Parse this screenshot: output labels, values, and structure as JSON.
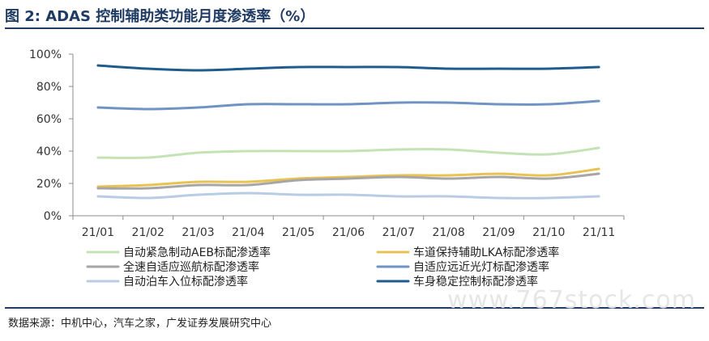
{
  "page": {
    "title": "图 2:  ADAS 控制辅助类功能月度渗透率（%）",
    "source": "数据来源：中机中心，汽车之家，广发证券发展研究中心",
    "watermark": "www.767stock.com"
  },
  "chart_data": {
    "type": "line",
    "title": "ADAS 控制辅助类功能月度渗透率（%）",
    "x": [
      "21/01",
      "21/02",
      "21/03",
      "21/04",
      "21/05",
      "21/06",
      "21/07",
      "21/08",
      "21/09",
      "21/10",
      "21/11"
    ],
    "ylim": [
      0,
      100
    ],
    "yticks": [
      0,
      20,
      40,
      60,
      80,
      100
    ],
    "ytick_format": "percent",
    "grid": false,
    "legend_position": "bottom",
    "series": [
      {
        "name": "自动紧急制动AEB标配渗透率",
        "color": "#c3e3b5",
        "values": [
          36,
          36,
          39,
          40,
          40,
          40,
          41,
          41,
          39,
          38,
          42
        ]
      },
      {
        "name": "车道保持辅助LKA标配渗透率",
        "color": "#e9c254",
        "values": [
          18,
          19,
          21,
          21,
          23,
          24,
          25,
          25,
          26,
          25,
          29
        ]
      },
      {
        "name": "全速自适应巡航标配渗透率",
        "color": "#a6a6a6",
        "values": [
          17,
          17,
          19,
          19,
          22,
          23,
          24,
          23,
          24,
          23,
          26
        ]
      },
      {
        "name": "自适应远近光灯标配渗透率",
        "color": "#6f93c4",
        "values": [
          67,
          66,
          67,
          69,
          69,
          69,
          70,
          70,
          69,
          69,
          71
        ]
      },
      {
        "name": "自动泊车入位标配渗透率",
        "color": "#b8cce4",
        "values": [
          12,
          11,
          13,
          14,
          13,
          13,
          12,
          12,
          11,
          11,
          12
        ]
      },
      {
        "name": "车身稳定控制标配渗透率",
        "color": "#1f5c8c",
        "values": [
          93,
          91,
          90,
          91,
          92,
          92,
          92,
          91,
          91,
          91,
          92
        ]
      }
    ]
  }
}
